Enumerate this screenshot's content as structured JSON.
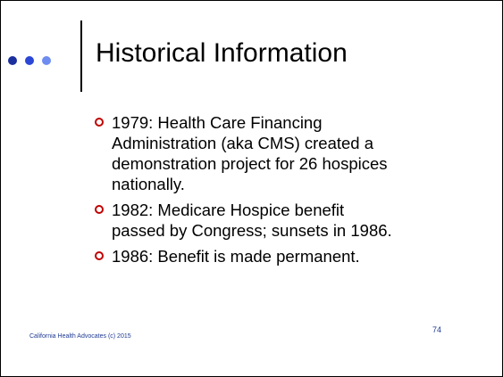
{
  "header": {
    "title": "Historical Information"
  },
  "bullets": [
    [
      "1979: Health Care Financing",
      "Administration (aka CMS) created a",
      "demonstration project for 26 hospices",
      "nationally."
    ],
    [
      "1982: Medicare Hospice benefit",
      "passed by Congress; sunsets in 1986."
    ],
    [
      "1986: Benefit is made permanent."
    ]
  ],
  "footer": {
    "text": "California Health Advocates (c) 2015",
    "page": "74"
  }
}
